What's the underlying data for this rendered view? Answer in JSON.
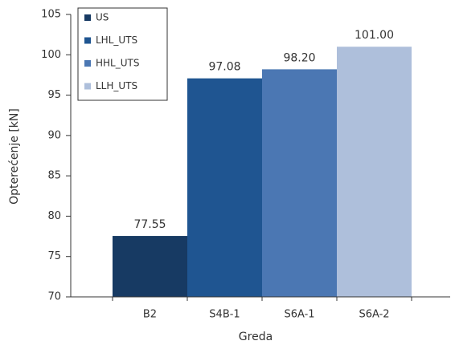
{
  "chart_data": {
    "type": "bar",
    "categories": [
      "B2",
      "S4B-1",
      "S6A-1",
      "S6A-2"
    ],
    "series": [
      {
        "name": "US",
        "color": "#173a63",
        "values": [
          77.55,
          null,
          null,
          null
        ],
        "value_labels": [
          "77.55",
          null,
          null,
          null
        ]
      },
      {
        "name": "LHL_UTS",
        "color": "#1f5591",
        "values": [
          null,
          97.08,
          null,
          null
        ],
        "value_labels": [
          null,
          "97.08",
          null,
          null
        ]
      },
      {
        "name": "HHL_UTS",
        "color": "#4b77b3",
        "values": [
          null,
          null,
          98.2,
          null
        ],
        "value_labels": [
          null,
          null,
          "98.20",
          null
        ]
      },
      {
        "name": "LLH_UTS",
        "color": "#aebfdb",
        "values": [
          null,
          null,
          null,
          101
        ],
        "value_labels": [
          null,
          null,
          null,
          "101.00"
        ]
      }
    ],
    "x_label": "Greda",
    "y_label": "Opterećenje [kN]",
    "ylim": [
      70,
      105
    ],
    "yticks": [
      70,
      75,
      80,
      85,
      90,
      95,
      100,
      105
    ],
    "legend": "upper left"
  }
}
